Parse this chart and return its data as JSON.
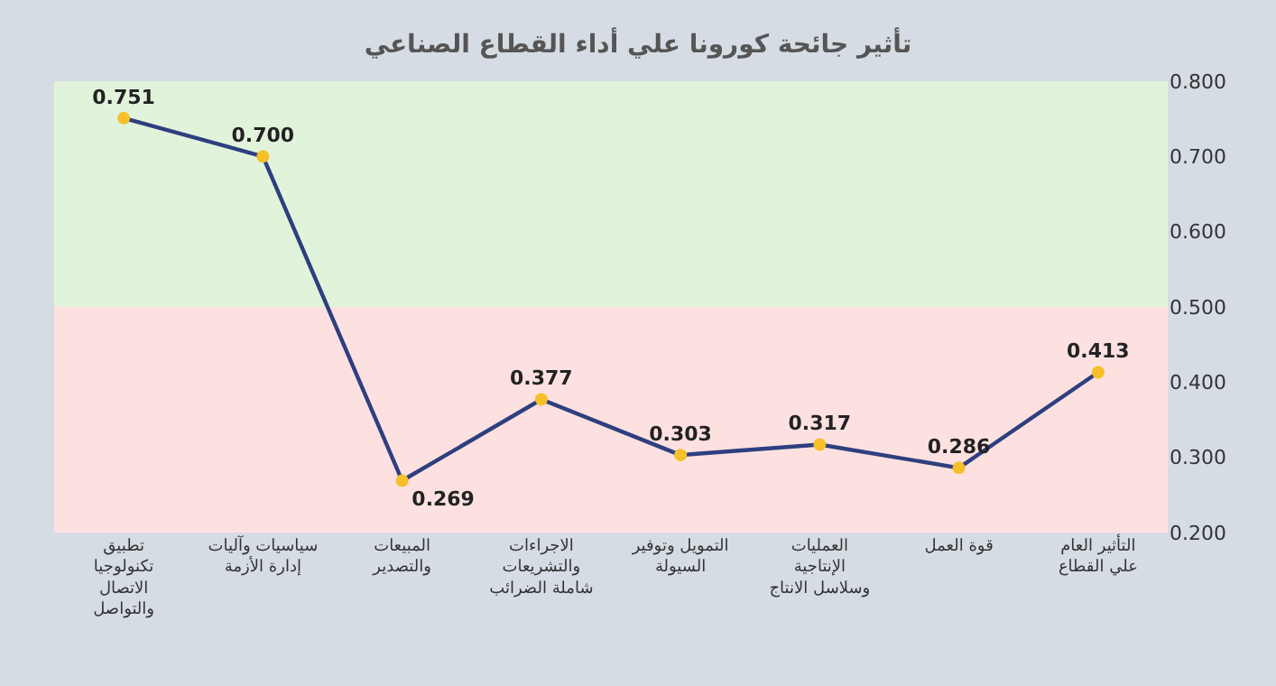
{
  "chart_data": {
    "type": "line",
    "title": "تأثير جائحة كورونا علي أداء القطاع الصناعي",
    "categories": [
      "تطبيق تكنولوجيا الاتصال والتواصل",
      "سياسيات وآليات إدارة الأزمة",
      "المبيعات والتصدير",
      "الاجراءات والتشريعات شاملة الضرائب",
      "التمويل وتوفير السيولة",
      "العمليات الإنتاجية وسلاسل الانتاج",
      "قوة العمل",
      "التأثير العام علي القطاع"
    ],
    "series": [
      {
        "color": "#2e3f7f",
        "values": [
          0.751,
          0.7,
          0.269,
          0.377,
          0.303,
          0.317,
          0.286,
          0.413
        ],
        "value_labels": [
          "0.751",
          "0.700",
          "0.269",
          "0.377",
          "0.303",
          "0.317",
          "0.286",
          "0.413"
        ]
      }
    ],
    "ylim": [
      0.2,
      0.8
    ],
    "yticks": [
      {
        "value": 0.2,
        "label": "0.200"
      },
      {
        "value": 0.3,
        "label": "0.300"
      },
      {
        "value": 0.4,
        "label": "0.400"
      },
      {
        "value": 0.5,
        "label": "0.500"
      },
      {
        "value": 0.6,
        "label": "0.600"
      },
      {
        "value": 0.7,
        "label": "0.700"
      },
      {
        "value": 0.8,
        "label": "0.800"
      }
    ],
    "bands": [
      {
        "axis": "y",
        "from": 0.5,
        "to": 0.8,
        "color": "#e2f3dc"
      },
      {
        "axis": "y",
        "from": 0.2,
        "to": 0.5,
        "color": "#fde1e1"
      }
    ],
    "marker": "circle",
    "grid": false,
    "legend": false
  }
}
